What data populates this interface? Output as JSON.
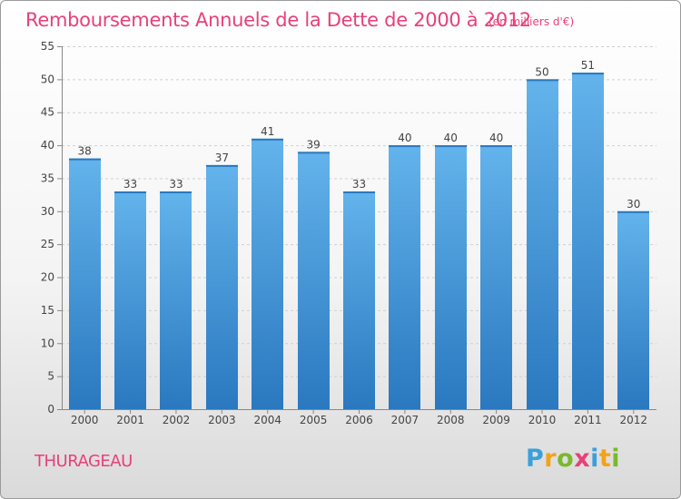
{
  "title": "Remboursements Annuels de la Dette de 2000 à 2012",
  "unit": "(en milliers d'€)",
  "commune": "THURAGEAU",
  "logo": {
    "letters": [
      "P",
      "r",
      "o",
      "x",
      "i",
      "t",
      "i"
    ],
    "colors": [
      "#3aa0dc",
      "#f2a21b",
      "#7ab82d",
      "#e8407a",
      "#3aa0dc",
      "#f2a21b",
      "#7ab82d"
    ]
  },
  "colors": {
    "accent": "#e8407a",
    "bar": "#3d8fd6",
    "bar_light": "#63b3ec",
    "bar_dark": "#2a78bf"
  },
  "chart_data": {
    "type": "bar",
    "title": "Remboursements Annuels de la Dette de 2000 à 2012",
    "xlabel": "",
    "ylabel": "",
    "categories": [
      "2000",
      "2001",
      "2002",
      "2003",
      "2004",
      "2005",
      "2006",
      "2007",
      "2008",
      "2009",
      "2010",
      "2011",
      "2012"
    ],
    "values": [
      38,
      33,
      33,
      37,
      41,
      39,
      33,
      40,
      40,
      40,
      50,
      51,
      30
    ],
    "ylim": [
      0,
      55
    ],
    "yticks": [
      0,
      5,
      10,
      15,
      20,
      25,
      30,
      35,
      40,
      45,
      50,
      55
    ],
    "grid": true
  }
}
